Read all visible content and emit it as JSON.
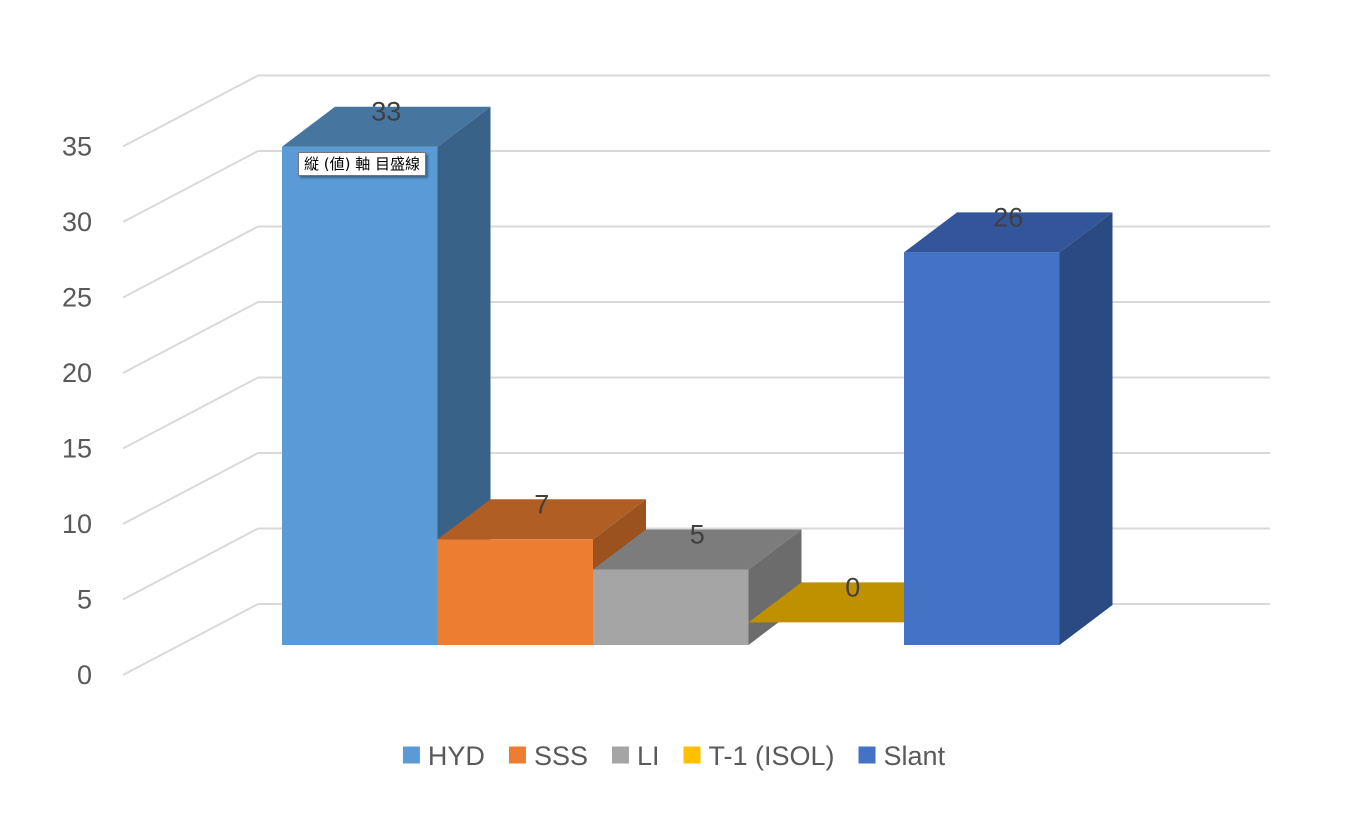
{
  "chart_data": {
    "type": "bar",
    "style": "3d-column",
    "categories": [
      "HYD",
      "SSS",
      "LI",
      "T-1 (ISOL)",
      "Slant"
    ],
    "values": [
      33,
      7,
      5,
      0,
      26
    ],
    "data_labels": [
      "33",
      "7",
      "5",
      "0",
      "26"
    ],
    "legend": [
      "HYD",
      "SSS",
      "LI",
      "T-1 (ISOL)",
      "Slant"
    ],
    "legend_position": "bottom",
    "ylim": [
      0,
      35
    ],
    "y_ticks": [
      "0",
      "5",
      "10",
      "15",
      "20",
      "25",
      "30",
      "35"
    ],
    "grid": true,
    "colors": {
      "front": [
        "#5B9BD5",
        "#ED7D31",
        "#A5A5A5",
        "#FFC000",
        "#4472C4"
      ],
      "top": [
        "#4675A0",
        "#B15E25",
        "#7C7C7C",
        "#BF9000",
        "#33559A"
      ],
      "side": [
        "#386287",
        "#9C521F",
        "#6C6C6C",
        "#A67D00",
        "#2B4983"
      ],
      "grid": "#D9D9D9",
      "text": "#595959"
    }
  },
  "tooltip": {
    "text": "縦 (値) 軸 目盛線"
  }
}
